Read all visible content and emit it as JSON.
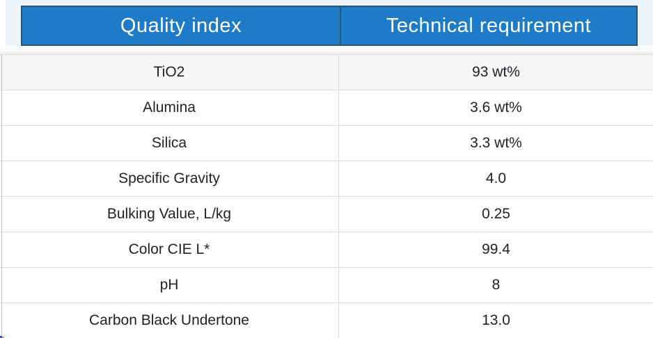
{
  "header": {
    "columns": [
      {
        "label": "Quality index"
      },
      {
        "label": "Technical requirement"
      }
    ],
    "background_color": "#1d7bc7",
    "border_color": "#33536b",
    "text_color": "#ffffff"
  },
  "table": {
    "column_headers": [
      "Quality index",
      "Technical requirement"
    ],
    "rows": [
      {
        "quality": "TiO2",
        "requirement": "93 wt%"
      },
      {
        "quality": "Alumina",
        "requirement": "3.6 wt%"
      },
      {
        "quality": "Silica",
        "requirement": "3.3 wt%"
      },
      {
        "quality": "Specific Gravity",
        "requirement": "4.0"
      },
      {
        "quality": "Bulking Value, L/kg",
        "requirement": "0.25"
      },
      {
        "quality": "Color CIE L*",
        "requirement": "99.4"
      },
      {
        "quality": "pH",
        "requirement": "8"
      },
      {
        "quality": "Carbon Black Undertone",
        "requirement": "13.0"
      }
    ],
    "shaded_row_color": "#f4f6f8",
    "grid_line_color": "#dcdcdc"
  }
}
